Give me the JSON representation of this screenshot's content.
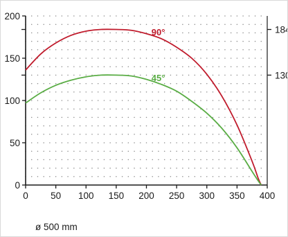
{
  "chart_data": {
    "type": "line",
    "title": "",
    "xlabel": "",
    "ylabel": "",
    "xlim": [
      0,
      400
    ],
    "ylim": [
      0,
      200
    ],
    "x_ticks": [
      "0",
      "50",
      "100",
      "150",
      "200",
      "250",
      "300",
      "350",
      "400"
    ],
    "y_ticks": [
      "0",
      "50",
      "100",
      "150",
      "200"
    ],
    "right_ticks": [
      "184",
      "130"
    ],
    "grid": "dotted",
    "series": [
      {
        "name": "90°",
        "color": "#c01b2c",
        "x": [
          0,
          25,
          50,
          75,
          100,
          125,
          150,
          175,
          200,
          225,
          250,
          275,
          300,
          325,
          350,
          375,
          385,
          390
        ],
        "y": [
          136,
          155,
          168,
          177,
          182,
          184,
          184,
          183,
          179,
          173,
          163,
          150,
          131,
          105,
          71,
          28,
          8,
          0
        ]
      },
      {
        "name": "45°",
        "color": "#5aad45",
        "x": [
          0,
          25,
          50,
          75,
          100,
          125,
          150,
          175,
          200,
          225,
          250,
          275,
          300,
          325,
          350,
          375,
          385,
          390
        ],
        "y": [
          97,
          109,
          118,
          124,
          128,
          130,
          130,
          129,
          125,
          119,
          111,
          99,
          85,
          67,
          44,
          16,
          5,
          0
        ]
      }
    ],
    "footnote": "ø 500 mm"
  }
}
